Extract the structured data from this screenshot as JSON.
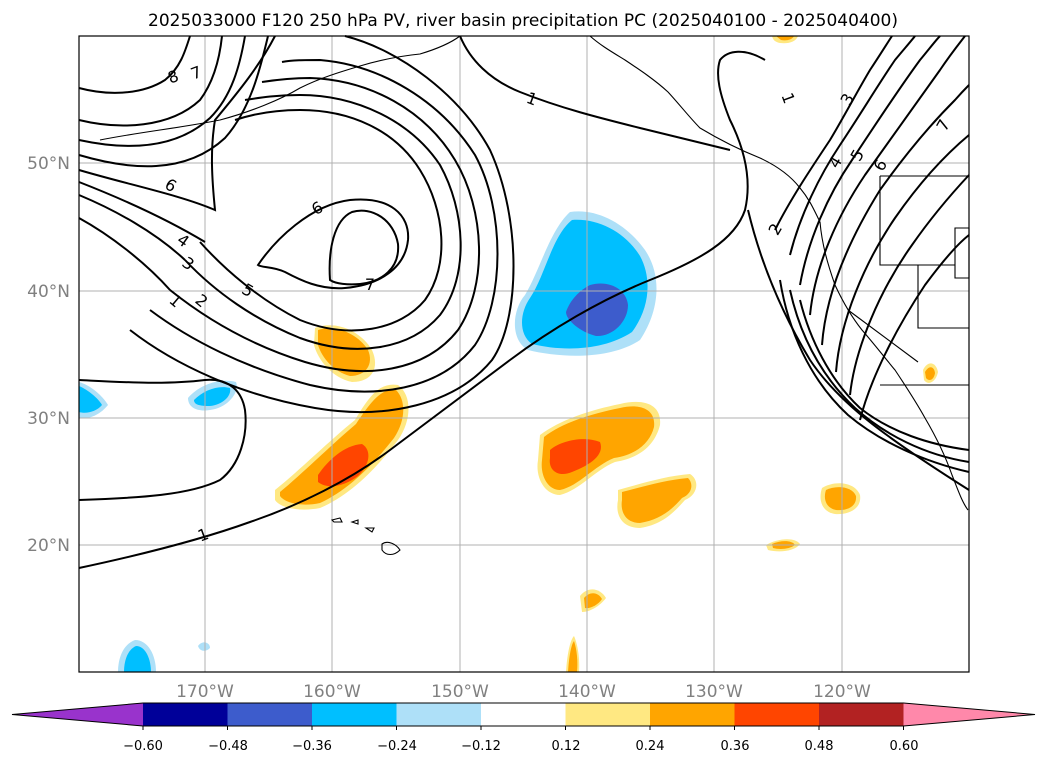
{
  "title": "2025033000 F120 250 hPa PV, river basin precipitation PC (2025040100 - 2025040400)",
  "lat_labels": [
    "50°N",
    "40°N",
    "30°N",
    "20°N"
  ],
  "lon_labels": [
    "170°W",
    "160°W",
    "150°W",
    "140°W",
    "130°W",
    "120°W"
  ],
  "colorbar": {
    "tick_labels": [
      "−0.60",
      "−0.48",
      "−0.36",
      "−0.24",
      "−0.12",
      "0.12",
      "0.24",
      "0.36",
      "0.48",
      "0.60"
    ],
    "colors": [
      "#9933cc",
      "#000099",
      "#3d5ccc",
      "#00bfff",
      "#aee0f8",
      "#ffffff",
      "#ffe882",
      "#ffa500",
      "#ff4500",
      "#b22222",
      "#ff88aa"
    ]
  },
  "contour_labels": [
    "8",
    "7",
    "6",
    "6",
    "7",
    "5",
    "4",
    "3",
    "2",
    "1",
    "1",
    "1",
    "1",
    "2",
    "4",
    "5",
    "6",
    "3",
    "7"
  ],
  "colors": {
    "pv_contour": "#000000",
    "coastline": "#000000",
    "grid": "#b0b0b0"
  }
}
